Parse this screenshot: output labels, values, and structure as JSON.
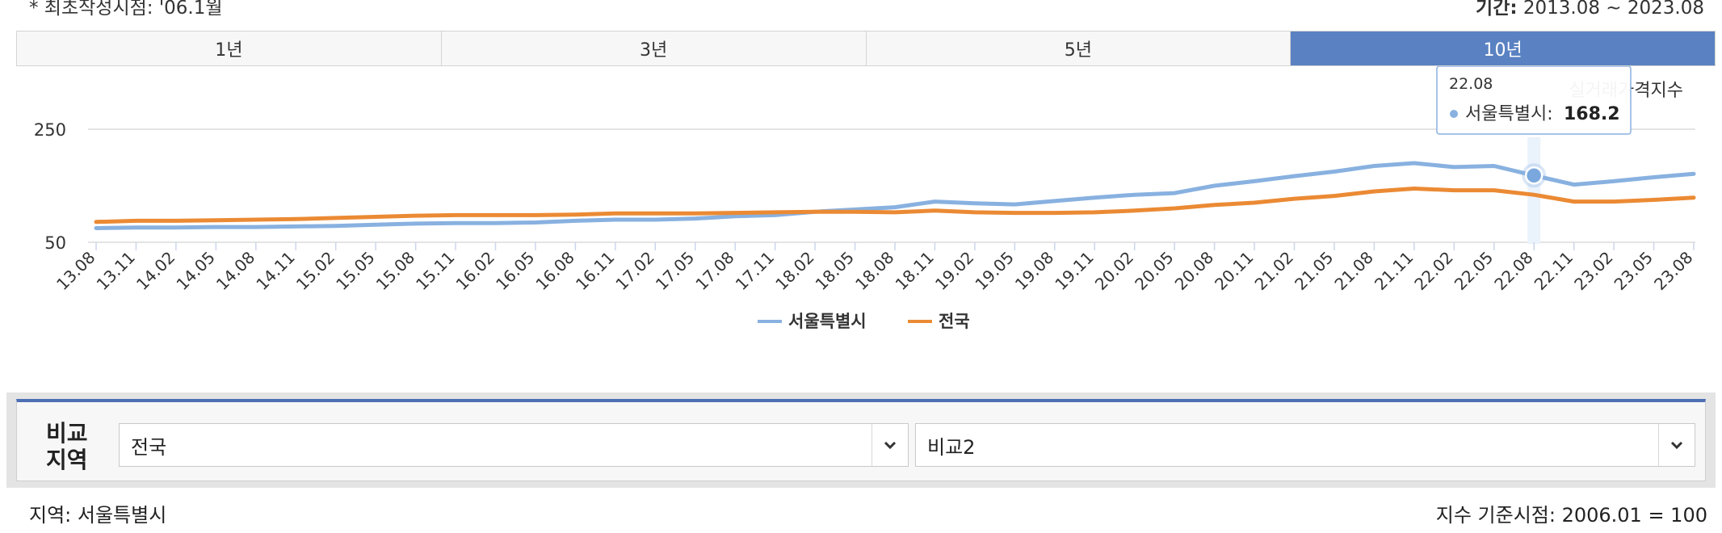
{
  "header": {
    "note": "* 최초작성시점: '06.1월",
    "period_label": "기간:",
    "period_value": "2013.08 ~ 2023.08"
  },
  "tabs": [
    {
      "label": "1년"
    },
    {
      "label": "3년"
    },
    {
      "label": "5년"
    },
    {
      "label": "10년"
    }
  ],
  "active_tab": "10년",
  "colors": {
    "seoul": "#88b1e0",
    "national": "#eb8a34",
    "accent": "#5a82c2"
  },
  "chart_data": {
    "type": "line",
    "ylabel": "실거래가격지수",
    "yticks": [
      50,
      250
    ],
    "ylim": [
      50,
      250
    ],
    "categories": [
      "13.08",
      "13.11",
      "14.02",
      "14.05",
      "14.08",
      "14.11",
      "15.02",
      "15.05",
      "15.08",
      "15.11",
      "16.02",
      "16.05",
      "16.08",
      "16.11",
      "17.02",
      "17.05",
      "17.08",
      "17.11",
      "18.02",
      "18.05",
      "18.08",
      "18.11",
      "19.02",
      "19.05",
      "19.08",
      "19.11",
      "20.02",
      "20.05",
      "20.08",
      "20.11",
      "21.02",
      "21.05",
      "21.08",
      "21.11",
      "22.02",
      "22.05",
      "22.08",
      "22.11",
      "23.02",
      "23.05",
      "23.08"
    ],
    "series": [
      {
        "name": "서울특별시",
        "values": [
          75,
          76,
          76,
          77,
          77,
          78,
          79,
          81,
          83,
          84,
          84,
          85,
          88,
          90,
          90,
          92,
          96,
          98,
          104,
          108,
          112,
          122,
          119,
          117,
          123,
          129,
          134,
          137,
          150,
          158,
          167,
          175,
          185,
          190,
          183,
          185,
          168.2,
          152,
          158,
          165,
          171
        ]
      },
      {
        "name": "전국",
        "values": [
          86,
          88,
          88,
          89,
          90,
          91,
          93,
          95,
          97,
          98,
          98,
          98,
          99,
          101,
          101,
          101,
          102,
          103,
          104,
          104,
          103,
          106,
          103,
          102,
          102,
          103,
          106,
          110,
          116,
          120,
          127,
          132,
          140,
          145,
          142,
          142,
          134,
          122,
          122,
          125,
          129
        ]
      }
    ],
    "tooltip": {
      "category": "22.08",
      "series": "서울특별시",
      "label": "서울특별시:",
      "value": "168.2"
    },
    "legend": {
      "position": "bottom-center"
    },
    "grid": true
  },
  "compare": {
    "label_line1": "비교",
    "label_line2": "지역",
    "select1": "전국",
    "select2": "비교2"
  },
  "footer": {
    "region": "지역: 서울특별시",
    "base": "지수 기준시점: 2006.01 = 100"
  }
}
